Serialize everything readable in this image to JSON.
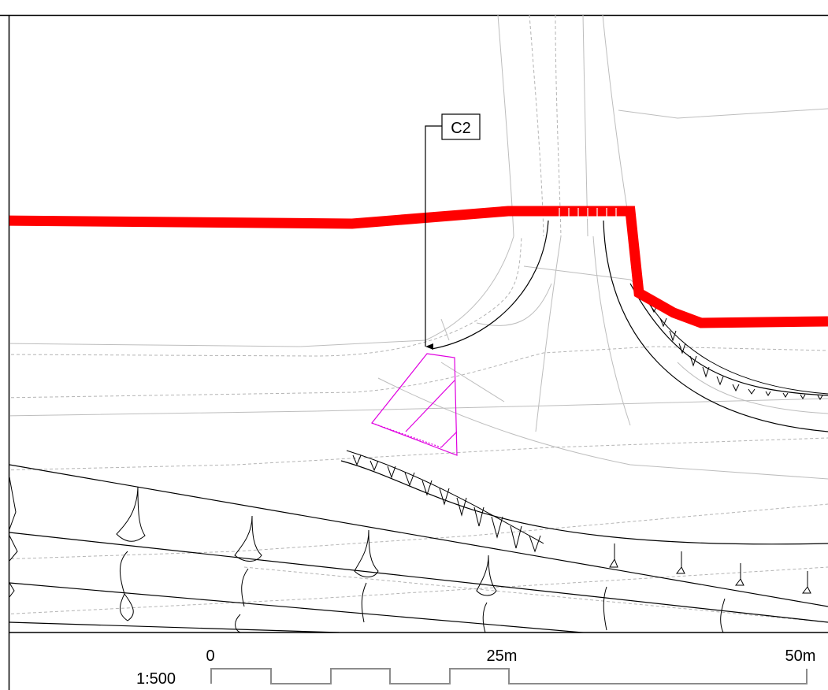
{
  "drawing": {
    "callout_label": "C2",
    "colors": {
      "boundary_red": "#ff0000",
      "area_magenta": "#e000e0",
      "linework": "#000000",
      "existing_grey": "#b4b4b4",
      "scale_bar_grey": "#8c8c8c"
    }
  },
  "scale_bar": {
    "ratio_label": "1:500",
    "tick_labels": [
      "0",
      "25m",
      "50m"
    ]
  }
}
